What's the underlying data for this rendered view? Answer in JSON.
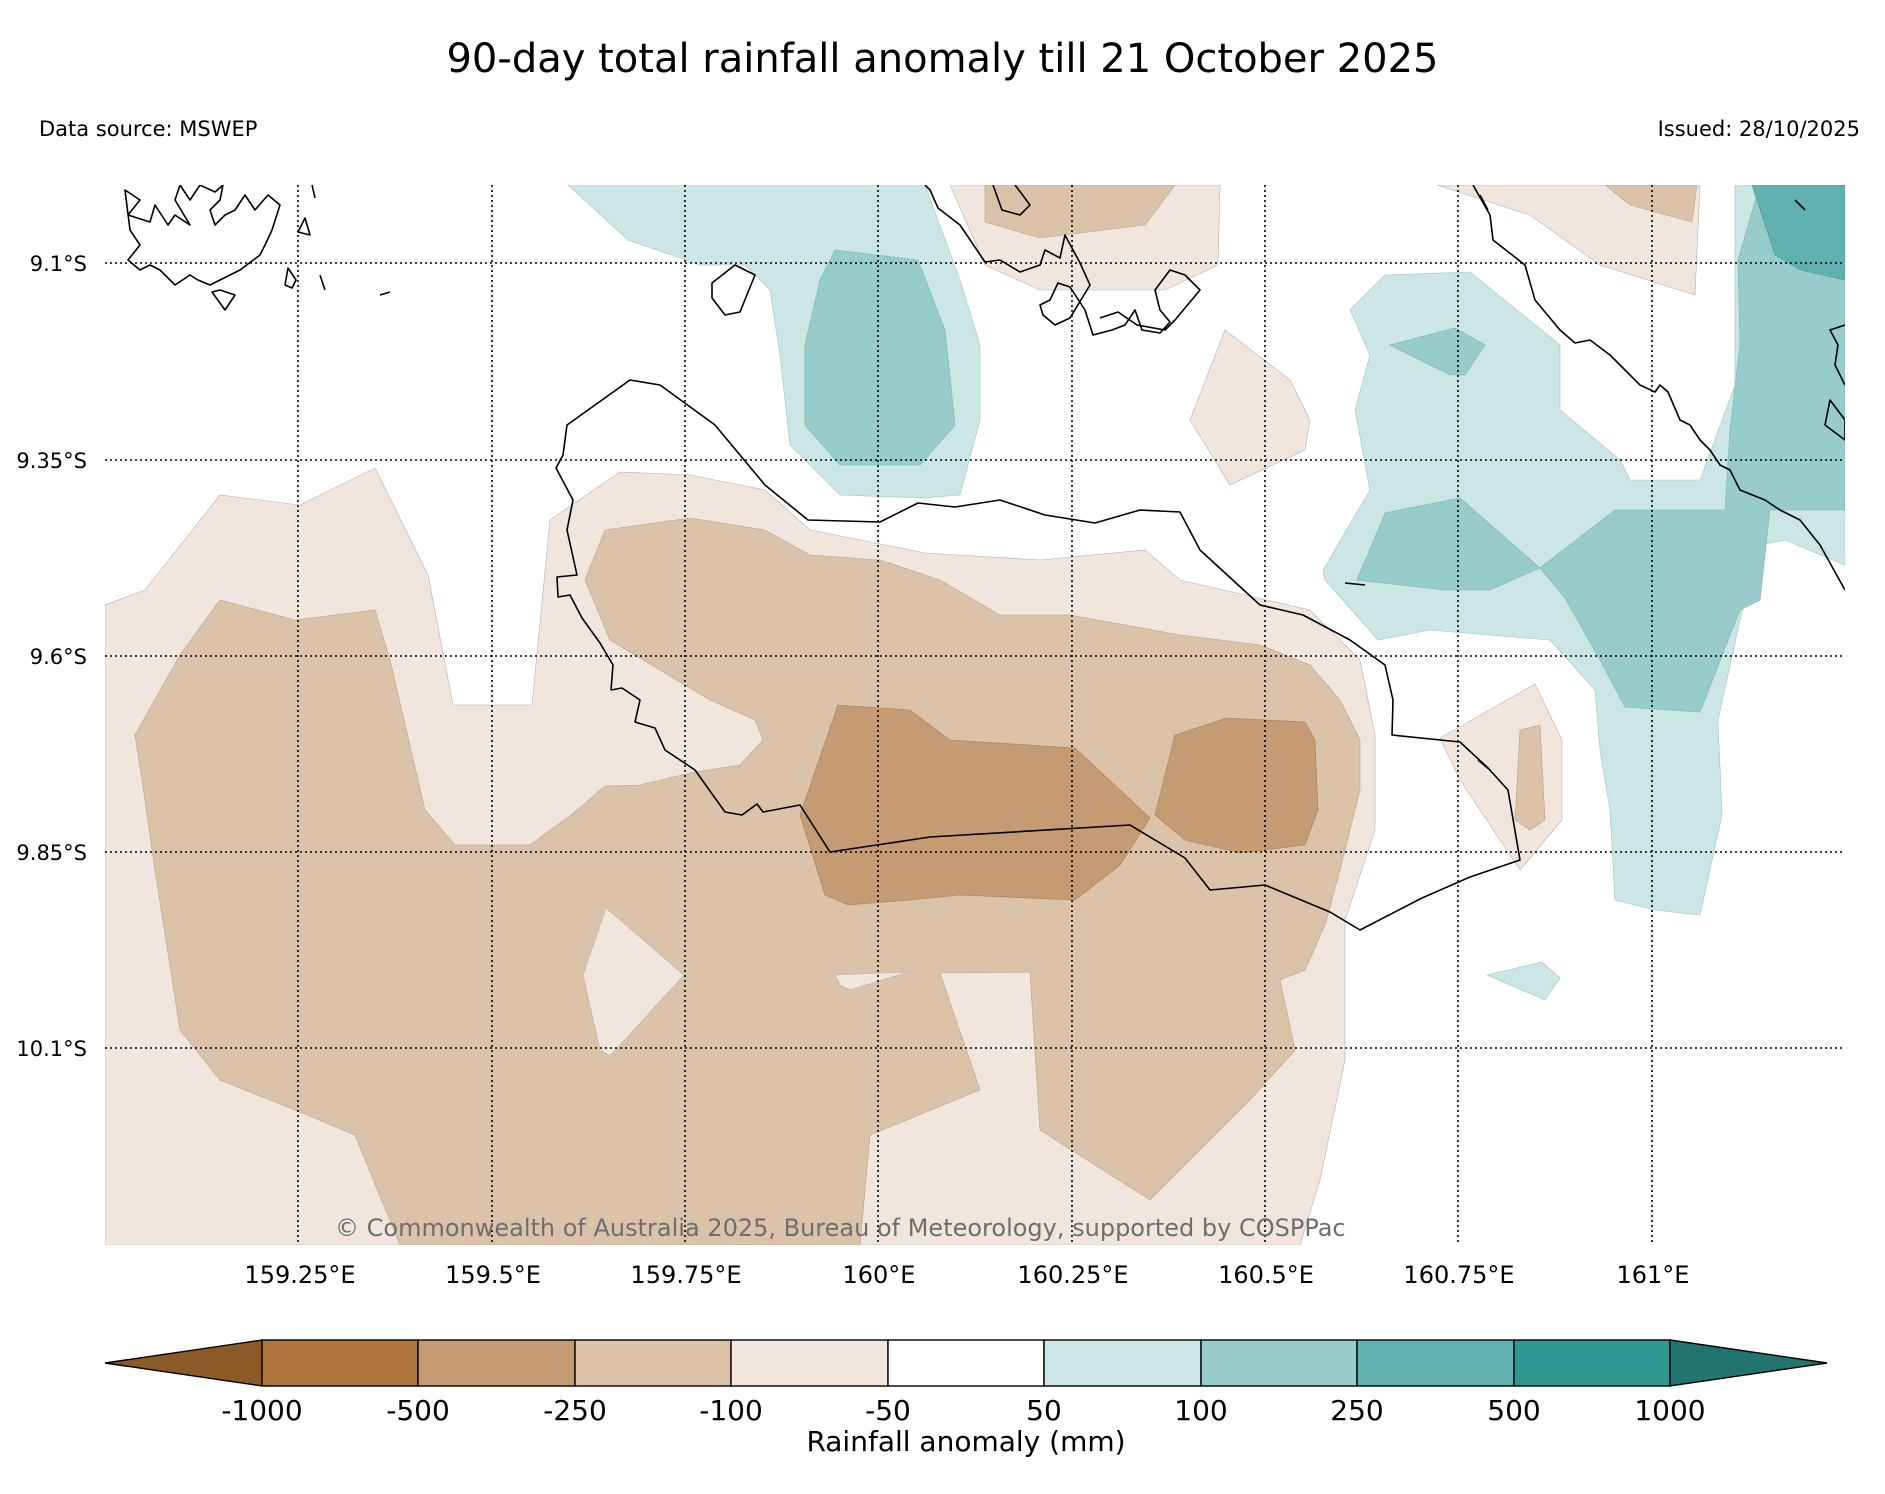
{
  "header": {
    "title": "90-day total rainfall anomaly till 21 October 2025",
    "data_source": "Data source: MSWEP",
    "issued": "Issued: 28/10/2025"
  },
  "map": {
    "lat_labels": [
      "9.1°S",
      "9.35°S",
      "9.6°S",
      "9.85°S",
      "10.1°S"
    ],
    "lon_labels": [
      "159.25°E",
      "159.5°E",
      "159.75°E",
      "160°E",
      "160.25°E",
      "160.5°E",
      "160.75°E",
      "161°E"
    ],
    "copyright": "© Commonwealth of Australia 2025, Bureau of Meteorology, supported by COSPPac"
  },
  "colorbar": {
    "title": "Rainfall anomaly (mm)",
    "ticks": [
      "-1000",
      "-500",
      "-250",
      "-100",
      "-50",
      "50",
      "100",
      "250",
      "500",
      "1000"
    ],
    "colors": {
      "below_min": "#8c5a26",
      "-1000_-500": "#ad753d",
      "-500_-250": "#c49b72",
      "-250_-100": "#dbc3aa",
      "-100_-50": "#f1e6dd",
      "-50_50": "#ffffff",
      "50_100": "#cbe6e4",
      "100_250": "#98cccb",
      "250_500": "#62b1b1",
      "500_1000": "#2e9890",
      "above_max": "#22756f"
    }
  }
}
